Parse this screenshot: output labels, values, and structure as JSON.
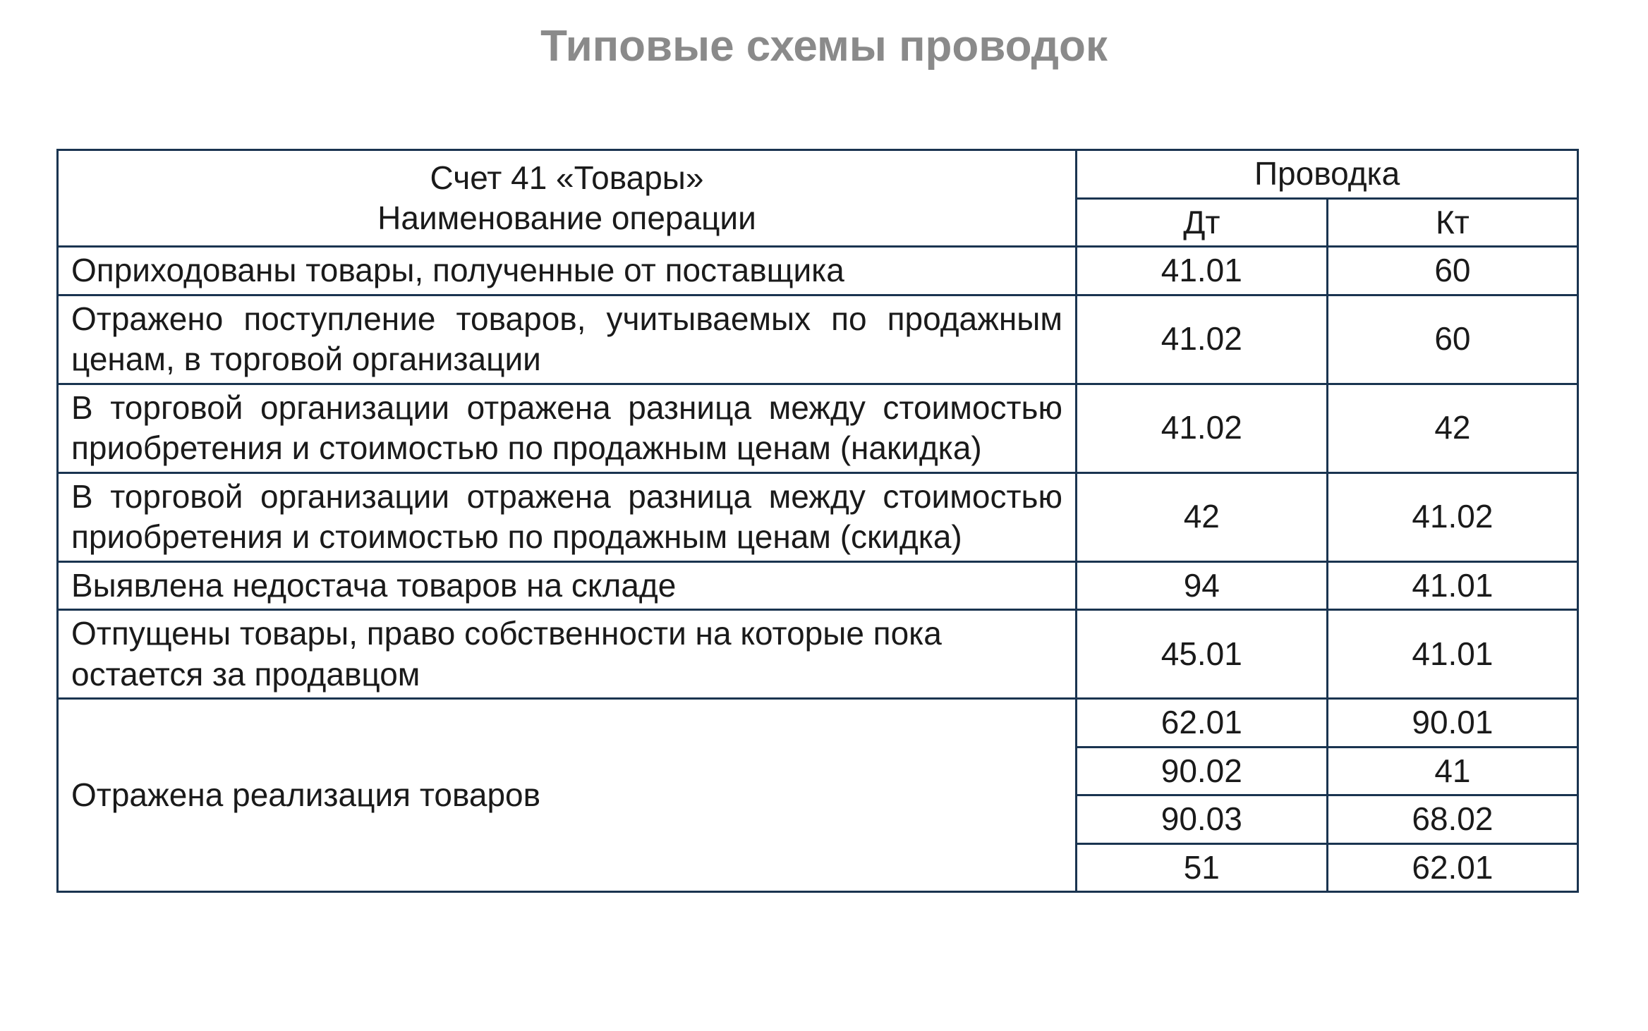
{
  "title": "Типовые схемы проводок",
  "table": {
    "border_color": "#1a3450",
    "text_color": "#1a1a1a",
    "title_color": "#8a8a8a",
    "background_color": "#ffffff",
    "font_size_body": 46,
    "font_size_title": 62,
    "columns": {
      "main_header_line1": "Счет 41 «Товары»",
      "main_header_line2": "Наименование операции",
      "provodka": "Проводка",
      "dt": "Дт",
      "kt": "Кт"
    },
    "rows": [
      {
        "name": "Оприходованы товары, полученные от поставщика",
        "justify": false,
        "entries": [
          {
            "dt": "41.01",
            "kt": "60"
          }
        ]
      },
      {
        "name": "Отражено поступление товаров, учитываемых по продажным ценам, в торговой организации",
        "justify": true,
        "entries": [
          {
            "dt": "41.02",
            "kt": "60"
          }
        ]
      },
      {
        "name": "В торговой организации отражена разница между стоимостью приобретения и стоимостью по продажным ценам (накидка)",
        "justify": true,
        "entries": [
          {
            "dt": "41.02",
            "kt": "42"
          }
        ]
      },
      {
        "name": "В торговой организации отражена разница между стоимостью приобретения и стоимостью по продажным ценам (скидка)",
        "justify": true,
        "entries": [
          {
            "dt": "42",
            "kt": "41.02"
          }
        ]
      },
      {
        "name": "Выявлена недостача товаров на складе",
        "justify": false,
        "entries": [
          {
            "dt": "94",
            "kt": "41.01"
          }
        ]
      },
      {
        "name": "Отпущены товары, право собственности на которые пока остается за продавцом",
        "justify": false,
        "entries": [
          {
            "dt": "45.01",
            "kt": "41.01"
          }
        ]
      },
      {
        "name": "Отражена реализация товаров",
        "justify": false,
        "entries": [
          {
            "dt": "62.01",
            "kt": "90.01"
          },
          {
            "dt": "90.02",
            "kt": "41"
          },
          {
            "dt": "90.03",
            "kt": "68.02"
          },
          {
            "dt": "51",
            "kt": "62.01"
          }
        ]
      }
    ]
  }
}
